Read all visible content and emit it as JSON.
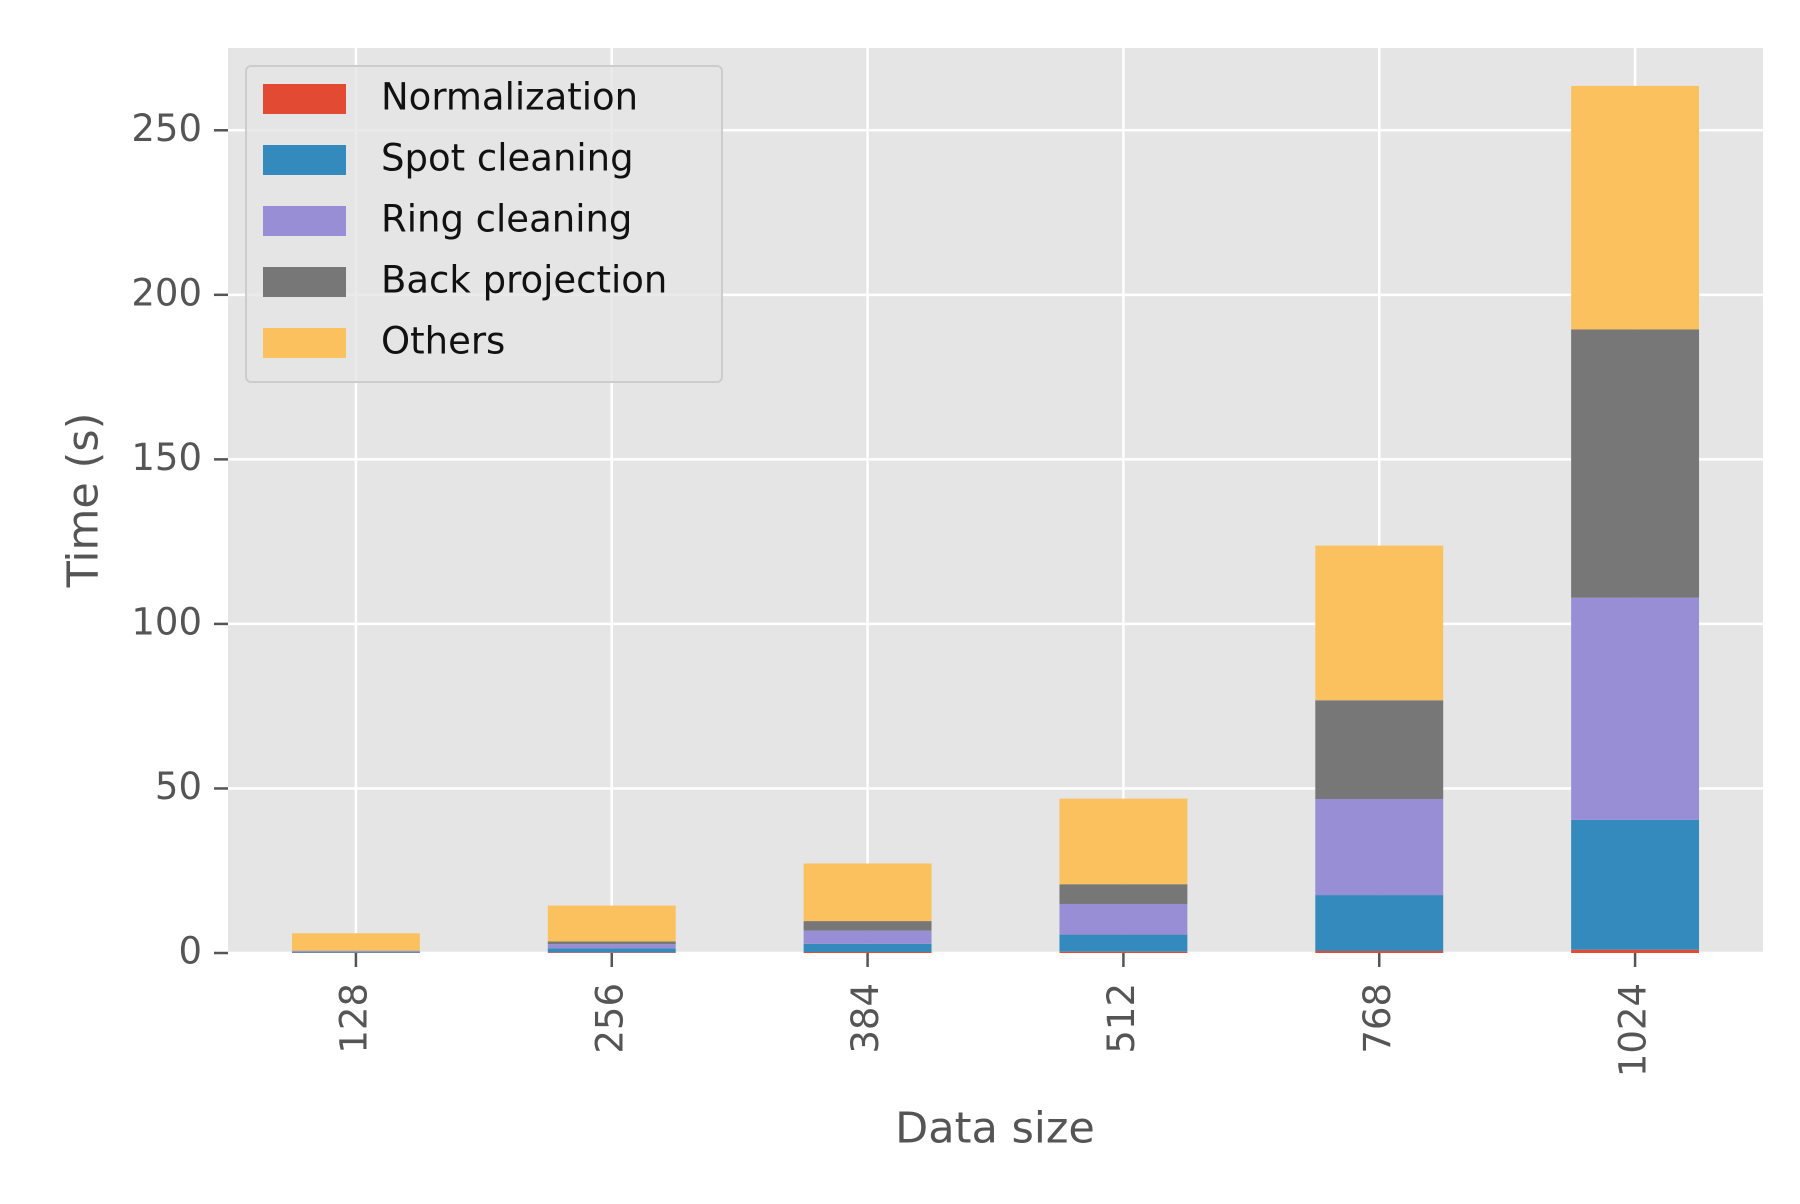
{
  "chart_data": {
    "type": "bar",
    "stacked": true,
    "categories": [
      "128",
      "256",
      "384",
      "512",
      "768",
      "1024"
    ],
    "series": [
      {
        "name": "Normalization",
        "color": "#E24A33",
        "values": [
          0.1,
          0.2,
          0.3,
          0.4,
          0.6,
          1.0
        ]
      },
      {
        "name": "Spot cleaning",
        "color": "#348ABD",
        "values": [
          0.3,
          1.2,
          2.5,
          5.2,
          17.0,
          39.5
        ]
      },
      {
        "name": "Ring cleaning",
        "color": "#988ED5",
        "values": [
          0.2,
          1.3,
          4.0,
          9.3,
          29.2,
          67.5
        ]
      },
      {
        "name": "Back projection",
        "color": "#777777",
        "values": [
          0.1,
          0.8,
          2.9,
          6.0,
          30.0,
          81.5
        ]
      },
      {
        "name": "Others",
        "color": "#FBC15E",
        "values": [
          5.3,
          10.9,
          17.5,
          26.0,
          47.0,
          74.0
        ]
      }
    ],
    "xlabel": "Data size",
    "ylabel": "Time (s)",
    "title": "",
    "ylim": [
      0,
      275
    ],
    "yticks": [
      0,
      50,
      100,
      150,
      200,
      250
    ],
    "grid": true,
    "legend_position": "top-left",
    "plot_background": "#E5E5E5",
    "grid_color": "#FFFFFF"
  }
}
